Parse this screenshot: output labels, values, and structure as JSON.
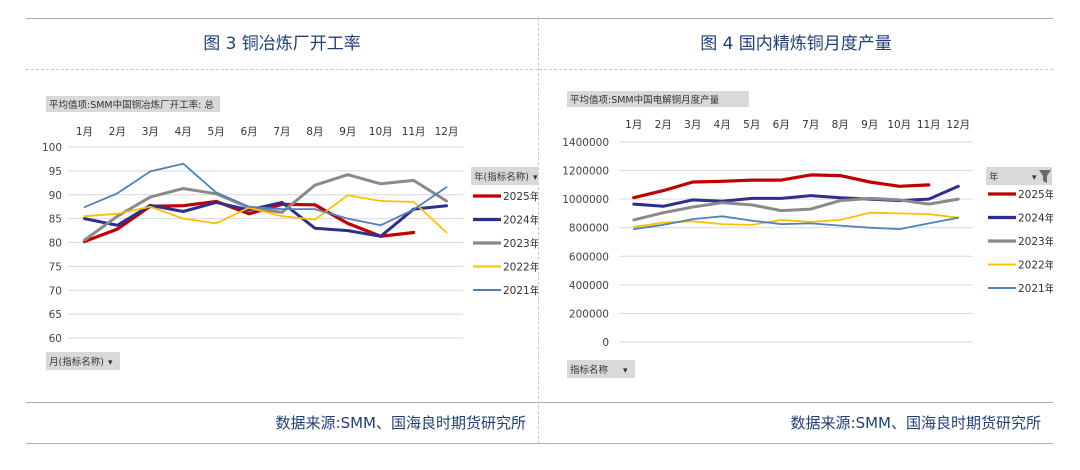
{
  "left_panel": {
    "title": "图 3   铜冶炼厂开工率",
    "source": "数据来源:SMM、国海良时期货研究所",
    "field_label": "平均值项:SMM中国铜冶炼厂开工率: 总",
    "filter_label": "年(指标名称)",
    "axis_button": "月(指标名称)"
  },
  "right_panel": {
    "title": "图 4 国内精炼铜月度产量",
    "source": "数据来源:SMM、国海良时期货研究所",
    "field_label": "平均值项:SMM中国电解铜月度产量",
    "filter_label": "年",
    "axis_button": "指标名称"
  },
  "colors": {
    "2025年": "#c00000",
    "2024年": "#2e2e8f",
    "2023年": "#8a8a8a",
    "2022年": "#ffc000",
    "2021年": "#4f81bd"
  },
  "chart_data": [
    {
      "type": "line",
      "title": "铜冶炼厂开工率",
      "categories": [
        "1月",
        "2月",
        "3月",
        "4月",
        "5月",
        "6月",
        "7月",
        "8月",
        "9月",
        "10月",
        "11月",
        "12月"
      ],
      "ylim": [
        60,
        100
      ],
      "yticks": [
        60,
        65,
        70,
        75,
        80,
        85,
        90,
        95,
        100
      ],
      "series": [
        {
          "name": "2025年",
          "values": [
            80.2,
            82.8,
            87.6,
            87.7,
            88.6,
            86.0,
            88.0,
            87.9,
            84.0,
            81.3,
            82.1,
            null
          ]
        },
        {
          "name": "2024年",
          "values": [
            85.0,
            83.6,
            87.8,
            86.5,
            88.4,
            86.8,
            88.4,
            83.0,
            82.5,
            81.3,
            87.0,
            87.7
          ]
        },
        {
          "name": "2023年",
          "values": [
            80.5,
            85.5,
            89.5,
            91.3,
            90.2,
            87.3,
            86.3,
            92.0,
            94.2,
            92.3,
            93.0,
            88.7
          ]
        },
        {
          "name": "2022年",
          "values": [
            85.5,
            86.0,
            87.5,
            85.0,
            84.0,
            87.3,
            85.5,
            84.8,
            89.9,
            88.7,
            88.5,
            82.1
          ]
        },
        {
          "name": "2021年",
          "values": [
            87.4,
            90.3,
            94.9,
            96.5,
            90.5,
            87.5,
            87.0,
            87.0,
            85.0,
            83.6,
            86.9,
            91.6
          ]
        }
      ]
    },
    {
      "type": "line",
      "title": "国内精炼铜月度产量",
      "categories": [
        "1月",
        "2月",
        "3月",
        "4月",
        "5月",
        "6月",
        "7月",
        "8月",
        "9月",
        "10月",
        "11月",
        "12月"
      ],
      "ylim": [
        0,
        1400000
      ],
      "yticks": [
        0,
        200000,
        400000,
        600000,
        800000,
        1000000,
        1200000,
        1400000
      ],
      "series": [
        {
          "name": "2025年",
          "values": [
            1010000,
            1060000,
            1120000,
            1125000,
            1133000,
            1133000,
            1170000,
            1165000,
            1120000,
            1090000,
            1100000,
            null
          ]
        },
        {
          "name": "2024年",
          "values": [
            965000,
            950000,
            995000,
            985000,
            1005000,
            1005000,
            1025000,
            1010000,
            1000000,
            990000,
            1000000,
            1090000
          ]
        },
        {
          "name": "2023年",
          "values": [
            855000,
            905000,
            945000,
            975000,
            960000,
            920000,
            930000,
            990000,
            1005000,
            995000,
            965000,
            1000000
          ]
        },
        {
          "name": "2022年",
          "values": [
            805000,
            835000,
            845000,
            825000,
            820000,
            855000,
            840000,
            855000,
            905000,
            900000,
            895000,
            870000
          ]
        },
        {
          "name": "2021年",
          "values": [
            790000,
            820000,
            860000,
            880000,
            850000,
            825000,
            830000,
            815000,
            800000,
            790000,
            830000,
            870000
          ]
        }
      ]
    }
  ]
}
